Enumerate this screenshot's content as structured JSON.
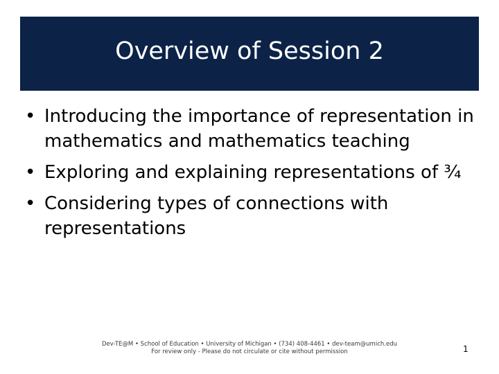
{
  "slide": {
    "title": "Overview of Session 2",
    "bullet_glyph": "•",
    "bullets": [
      {
        "text": "Introducing the importance of representation in mathematics and mathematics teaching"
      },
      {
        "text": "Exploring and explaining representations of ¾"
      },
      {
        "text": "Considering types of connections with representations"
      }
    ],
    "footer_line1": "Dev-TE@M • School of Education • University of Michigan • (734) 408-4461 • dev-team@umich.edu",
    "footer_line2": "For review only - Please do not circulate or cite without permission",
    "page_number": "1"
  },
  "colors": {
    "title_background": "#0c2347",
    "title_text": "#ffffff",
    "body_text": "#000000"
  }
}
